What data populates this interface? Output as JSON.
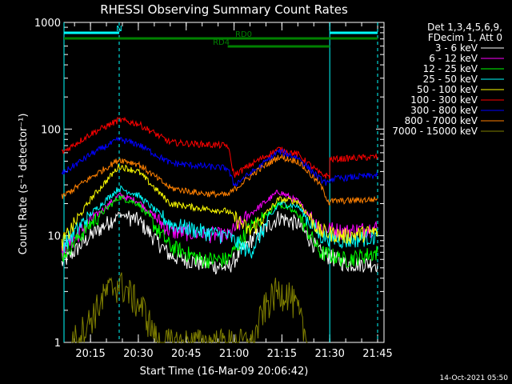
{
  "chart_data": {
    "type": "line",
    "title": "RHESSI Observing Summary Count Rates",
    "xlabel": "Start Time (16-Mar-09 20:06:42)",
    "ylabel": "Count Rate (s⁻¹ detector⁻¹)",
    "y_scale": "log",
    "ylim": [
      1,
      1000
    ],
    "xlim": [
      "20:06:42",
      "21:47:00"
    ],
    "x_ticks": [
      "20:15",
      "20:30",
      "20:45",
      "21:00",
      "21:15",
      "21:30",
      "21:45"
    ],
    "y_ticks": [
      "1",
      "10",
      "100",
      "1000"
    ],
    "footer": "14-Oct-2021 05:50",
    "legend": {
      "header": [
        "Det 1,3,4,5,6,9,",
        "FDecim 1, Att 0"
      ],
      "position": "right"
    },
    "series": [
      {
        "name": "3 - 6 keV",
        "color": "#ffffff",
        "points": [
          [
            "20:06",
            5.5
          ],
          [
            "20:15",
            10
          ],
          [
            "20:24",
            16
          ],
          [
            "20:30",
            14
          ],
          [
            "20:40",
            6.5
          ],
          [
            "20:50",
            5.5
          ],
          [
            "20:58",
            5
          ],
          [
            "21:05",
            9
          ],
          [
            "21:14",
            15
          ],
          [
            "21:20",
            13
          ],
          [
            "21:27",
            7
          ],
          [
            "21:35",
            5.5
          ],
          [
            "21:45",
            5.5
          ]
        ]
      },
      {
        "name": "6 - 12 keV",
        "color": "#ff00ff",
        "points": [
          [
            "20:06",
            7
          ],
          [
            "20:15",
            14
          ],
          [
            "20:24",
            24
          ],
          [
            "20:30",
            21
          ],
          [
            "20:40",
            11
          ],
          [
            "20:50",
            10.5
          ],
          [
            "20:58",
            10
          ],
          [
            "21:05",
            16
          ],
          [
            "21:14",
            26
          ],
          [
            "21:20",
            21
          ],
          [
            "21:27",
            12
          ],
          [
            "21:35",
            11
          ],
          [
            "21:45",
            12
          ]
        ]
      },
      {
        "name": "12 - 25 keV",
        "color": "#00ff00",
        "points": [
          [
            "20:06",
            6.5
          ],
          [
            "20:15",
            13
          ],
          [
            "20:24",
            23
          ],
          [
            "20:30",
            20
          ],
          [
            "20:40",
            8
          ],
          [
            "20:50",
            6
          ],
          [
            "20:58",
            6
          ],
          [
            "21:05",
            12
          ],
          [
            "21:14",
            20
          ],
          [
            "21:20",
            16
          ],
          [
            "21:27",
            7
          ],
          [
            "21:35",
            6
          ],
          [
            "21:45",
            7
          ]
        ]
      },
      {
        "name": "25 - 50 keV",
        "color": "#00ffff",
        "points": [
          [
            "20:06",
            8
          ],
          [
            "20:15",
            16
          ],
          [
            "20:24",
            28
          ],
          [
            "20:30",
            24
          ],
          [
            "20:40",
            13
          ],
          [
            "20:50",
            11
          ],
          [
            "20:58",
            10
          ],
          [
            "21:05",
            7
          ],
          [
            "21:14",
            20
          ],
          [
            "21:20",
            19
          ],
          [
            "21:27",
            10
          ],
          [
            "21:35",
            9
          ],
          [
            "21:45",
            10
          ]
        ]
      },
      {
        "name": "50 - 100 keV",
        "color": "#ffff00",
        "points": [
          [
            "20:06",
            8.5
          ],
          [
            "20:15",
            22
          ],
          [
            "20:24",
            45
          ],
          [
            "20:30",
            40
          ],
          [
            "20:40",
            20
          ],
          [
            "20:50",
            18
          ],
          [
            "20:58",
            17
          ],
          [
            "21:05",
            11
          ],
          [
            "21:14",
            22
          ],
          [
            "21:20",
            21
          ],
          [
            "21:27",
            11
          ],
          [
            "21:35",
            10
          ],
          [
            "21:45",
            11
          ]
        ]
      },
      {
        "name": "100 - 300 keV",
        "color": "#ff0000",
        "points": [
          [
            "20:06",
            60
          ],
          [
            "20:15",
            90
          ],
          [
            "20:24",
            122
          ],
          [
            "20:30",
            112
          ],
          [
            "20:40",
            75
          ],
          [
            "20:50",
            72
          ],
          [
            "20:58",
            70
          ],
          [
            "21:00",
            37
          ],
          [
            "21:07",
            50
          ],
          [
            "21:14",
            65
          ],
          [
            "21:20",
            58
          ],
          [
            "21:27",
            38
          ],
          [
            "21:30",
            36
          ],
          [
            "21:30",
            52
          ],
          [
            "21:45",
            55
          ]
        ]
      },
      {
        "name": "300 - 800 keV",
        "color": "#0000ff",
        "points": [
          [
            "20:06",
            38
          ],
          [
            "20:15",
            58
          ],
          [
            "20:24",
            80
          ],
          [
            "20:30",
            72
          ],
          [
            "20:40",
            48
          ],
          [
            "20:50",
            45
          ],
          [
            "20:58",
            43
          ],
          [
            "21:00",
            30
          ],
          [
            "21:07",
            42
          ],
          [
            "21:14",
            62
          ],
          [
            "21:20",
            54
          ],
          [
            "21:27",
            34
          ],
          [
            "21:30",
            30
          ],
          [
            "21:30",
            34
          ],
          [
            "21:45",
            37
          ]
        ]
      },
      {
        "name": "800 - 7000 keV",
        "color": "#ff8000",
        "points": [
          [
            "20:06",
            23
          ],
          [
            "20:15",
            35
          ],
          [
            "20:24",
            52
          ],
          [
            "20:30",
            47
          ],
          [
            "20:40",
            28
          ],
          [
            "20:50",
            25
          ],
          [
            "20:58",
            24
          ],
          [
            "21:00",
            27
          ],
          [
            "21:07",
            40
          ],
          [
            "21:14",
            55
          ],
          [
            "21:20",
            50
          ],
          [
            "21:27",
            30
          ],
          [
            "21:30",
            20
          ],
          [
            "21:30",
            21
          ],
          [
            "21:45",
            22
          ]
        ]
      },
      {
        "name": "7000 - 15000 keV",
        "color": "#808000",
        "points": [
          [
            "20:09",
            1
          ],
          [
            "20:14",
            1.5
          ],
          [
            "20:20",
            3
          ],
          [
            "20:24",
            3.6
          ],
          [
            "20:27",
            3
          ],
          [
            "20:32",
            2
          ],
          [
            "20:36",
            1
          ],
          [
            "21:06",
            1
          ],
          [
            "21:09",
            2
          ],
          [
            "21:13",
            3
          ],
          [
            "21:17",
            3
          ],
          [
            "21:20",
            2
          ],
          [
            "21:23",
            1
          ]
        ]
      }
    ],
    "markers": {
      "vertical_lines": [
        {
          "time": "20:06:42",
          "style": "solid",
          "color": "#00ffff"
        },
        {
          "time": "20:24:00",
          "style": "dashed",
          "color": "#00ffff"
        },
        {
          "time": "21:30:00",
          "style": "solid",
          "color": "#00ffff"
        },
        {
          "time": "21:45:00",
          "style": "dashed",
          "color": "#00ffff"
        }
      ],
      "bars": [
        {
          "label": "N",
          "color": "#00ffff",
          "segments": [
            [
              "20:06:42",
              "20:24:00"
            ],
            [
              "21:30:00",
              "21:45:00"
            ]
          ]
        },
        {
          "label": "RD0",
          "color": "#008000",
          "segments": [
            [
              "20:06:42",
              "21:30:00"
            ],
            [
              "21:30:00",
              "21:45:00"
            ]
          ]
        },
        {
          "label": "RD4",
          "color": "#008000",
          "segments": [
            [
              "20:58:00",
              "21:30:00"
            ]
          ]
        }
      ]
    }
  }
}
